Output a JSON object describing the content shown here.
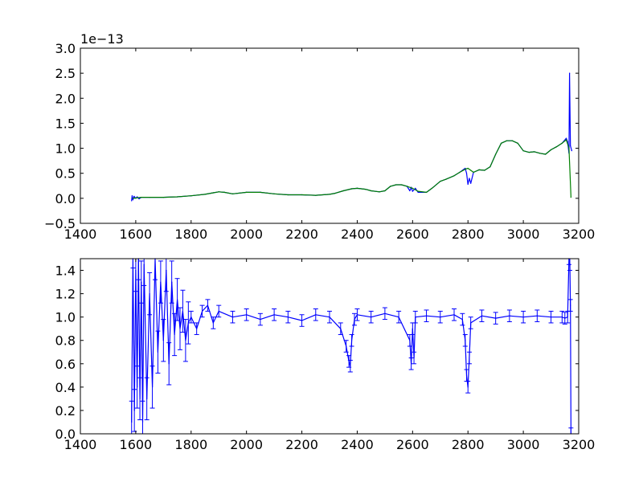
{
  "chart_data": [
    {
      "type": "line",
      "title": "",
      "xlabel": "",
      "ylabel": "",
      "offset_label": "1e−13",
      "xlim": [
        1400,
        3200
      ],
      "ylim": [
        -0.5,
        3.0
      ],
      "x_ticks": [
        "1400",
        "1600",
        "1800",
        "2000",
        "2200",
        "2400",
        "2600",
        "2800",
        "3000",
        "3200"
      ],
      "y_ticks": [
        "−0.5",
        "0.0",
        "0.5",
        "1.0",
        "1.5",
        "2.0",
        "2.5",
        "3.0"
      ],
      "grid": false,
      "series": [
        {
          "color": "#0000ff",
          "x": [
            1585,
            1587,
            1590,
            1594,
            1600,
            1605,
            1612,
            1620,
            1650,
            1700,
            1750,
            1800,
            1850,
            1880,
            1900,
            1920,
            1950,
            2000,
            2050,
            2100,
            2150,
            2200,
            2250,
            2300,
            2320,
            2350,
            2380,
            2400,
            2430,
            2450,
            2480,
            2500,
            2520,
            2540,
            2560,
            2580,
            2590,
            2595,
            2600,
            2610,
            2620,
            2650,
            2670,
            2700,
            2720,
            2750,
            2770,
            2790,
            2795,
            2800,
            2805,
            2810,
            2820,
            2840,
            2860,
            2880,
            2900,
            2920,
            2940,
            2960,
            2980,
            3000,
            3020,
            3040,
            3060,
            3080,
            3100,
            3120,
            3140,
            3155,
            3160,
            3165,
            3167,
            3170,
            3175
          ],
          "y": [
            -0.05,
            0.05,
            -0.03,
            0.04,
            0.0,
            0.03,
            -0.01,
            0.02,
            0.02,
            0.02,
            0.03,
            0.05,
            0.08,
            0.11,
            0.13,
            0.12,
            0.09,
            0.12,
            0.12,
            0.09,
            0.07,
            0.07,
            0.06,
            0.08,
            0.1,
            0.15,
            0.19,
            0.2,
            0.18,
            0.15,
            0.13,
            0.15,
            0.24,
            0.27,
            0.27,
            0.24,
            0.15,
            0.22,
            0.14,
            0.2,
            0.12,
            0.12,
            0.2,
            0.34,
            0.38,
            0.45,
            0.52,
            0.6,
            0.5,
            0.28,
            0.4,
            0.3,
            0.52,
            0.57,
            0.56,
            0.63,
            0.88,
            1.1,
            1.15,
            1.15,
            1.1,
            0.95,
            0.92,
            0.93,
            0.9,
            0.88,
            0.97,
            1.03,
            1.1,
            1.2,
            1.13,
            0.9,
            2.5,
            1.05,
            0.95
          ]
        },
        {
          "color": "#008000",
          "x": [
            1590,
            1620,
            1650,
            1700,
            1750,
            1800,
            1850,
            1880,
            1900,
            1920,
            1950,
            2000,
            2050,
            2100,
            2150,
            2200,
            2250,
            2300,
            2320,
            2350,
            2380,
            2400,
            2430,
            2450,
            2480,
            2500,
            2520,
            2540,
            2560,
            2580,
            2600,
            2620,
            2650,
            2670,
            2700,
            2720,
            2750,
            2770,
            2790,
            2800,
            2810,
            2820,
            2840,
            2860,
            2880,
            2900,
            2920,
            2940,
            2960,
            2980,
            3000,
            3020,
            3040,
            3060,
            3080,
            3100,
            3120,
            3140,
            3155,
            3165,
            3172
          ],
          "y": [
            0.0,
            0.02,
            0.02,
            0.02,
            0.03,
            0.05,
            0.08,
            0.11,
            0.13,
            0.12,
            0.09,
            0.12,
            0.12,
            0.09,
            0.07,
            0.07,
            0.06,
            0.08,
            0.1,
            0.15,
            0.19,
            0.2,
            0.18,
            0.15,
            0.13,
            0.15,
            0.24,
            0.27,
            0.27,
            0.24,
            0.2,
            0.14,
            0.12,
            0.2,
            0.34,
            0.38,
            0.45,
            0.52,
            0.58,
            0.6,
            0.56,
            0.52,
            0.57,
            0.56,
            0.63,
            0.88,
            1.1,
            1.15,
            1.15,
            1.1,
            0.95,
            0.92,
            0.93,
            0.9,
            0.88,
            0.97,
            1.03,
            1.1,
            1.17,
            1.0,
            0.02
          ]
        }
      ]
    },
    {
      "type": "line",
      "title": "",
      "xlabel": "",
      "ylabel": "",
      "xlim": [
        1400,
        3200
      ],
      "ylim": [
        0.0,
        1.5
      ],
      "x_ticks": [
        "1400",
        "1600",
        "1800",
        "2000",
        "2200",
        "2400",
        "2600",
        "2800",
        "3000",
        "3200"
      ],
      "y_ticks": [
        "0.0",
        "0.2",
        "0.4",
        "0.6",
        "0.8",
        "1.0",
        "1.2",
        "1.4"
      ],
      "grid": false,
      "error_bars": true,
      "series": [
        {
          "color": "#0000ff",
          "x": [
            1585,
            1590,
            1595,
            1600,
            1605,
            1610,
            1615,
            1620,
            1625,
            1630,
            1640,
            1650,
            1660,
            1670,
            1680,
            1690,
            1700,
            1710,
            1720,
            1730,
            1740,
            1750,
            1760,
            1770,
            1780,
            1790,
            1800,
            1820,
            1840,
            1860,
            1880,
            1900,
            1950,
            2000,
            2050,
            2100,
            2150,
            2200,
            2250,
            2300,
            2340,
            2360,
            2370,
            2375,
            2380,
            2390,
            2400,
            2450,
            2500,
            2550,
            2590,
            2595,
            2600,
            2605,
            2610,
            2650,
            2700,
            2750,
            2780,
            2790,
            2795,
            2800,
            2805,
            2810,
            2850,
            2900,
            2950,
            3000,
            3050,
            3100,
            3140,
            3150,
            3160,
            3165,
            3168,
            3170,
            3172
          ],
          "y": [
            0.1,
            1.6,
            0.2,
            1.4,
            0.4,
            1.5,
            0.3,
            1.3,
            0.1,
            1.45,
            0.3,
            1.2,
            0.4,
            1.5,
            0.7,
            1.3,
            0.8,
            1.4,
            0.6,
            1.3,
            0.85,
            1.15,
            0.9,
            1.05,
            0.8,
            0.95,
            1.0,
            0.9,
            1.05,
            1.1,
            0.95,
            1.05,
            1.0,
            1.02,
            0.98,
            1.02,
            1.0,
            0.97,
            1.02,
            1.0,
            0.9,
            0.75,
            0.62,
            0.58,
            0.8,
            0.98,
            1.02,
            1.0,
            1.03,
            1.0,
            0.8,
            0.6,
            0.9,
            0.65,
            1.0,
            1.01,
            1.0,
            1.02,
            0.98,
            0.8,
            0.5,
            0.4,
            0.65,
            0.95,
            1.01,
            0.99,
            1.01,
            1.0,
            1.01,
            1.0,
            1.0,
            0.99,
            1.0,
            1.5,
            1.45,
            1.1,
            0.0
          ]
        }
      ]
    }
  ]
}
